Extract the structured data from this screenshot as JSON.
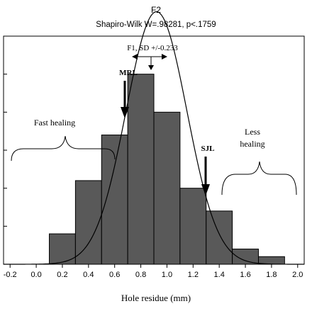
{
  "chart_data": {
    "type": "bar",
    "title": "F2",
    "subtitle": "Shapiro-Wilk W=.98281, p<.1759",
    "xlabel": "Hole residue (mm)",
    "ylabel": "",
    "bin_edges": [
      0.1,
      0.3,
      0.5,
      0.7,
      0.9,
      1.1,
      1.3,
      1.5,
      1.7,
      1.9
    ],
    "values": [
      4,
      11,
      17,
      25,
      20,
      10,
      7,
      2,
      1
    ],
    "ylim": [
      0,
      30
    ],
    "xlim": [
      -0.25,
      2.05
    ],
    "xticks": [
      "-0.2",
      "0.0",
      "0.2",
      "0.4",
      "0.6",
      "0.8",
      "1.0",
      "1.2",
      "1.4",
      "1.6",
      "1.8",
      "2.0"
    ],
    "grid": false,
    "normal_curve": {
      "mean": 0.92,
      "sd": 0.233
    },
    "annotations": {
      "sd_label": "F1, SD +/-0.233",
      "mrl": "MRL",
      "sjl": "SJL",
      "fast_healing": "Fast healing",
      "less_healing_line1": "Less",
      "less_healing_line2": "healing"
    },
    "colors": {
      "bar_fill": "#595959",
      "bar_stroke": "#000000",
      "curve": "#000000"
    }
  }
}
